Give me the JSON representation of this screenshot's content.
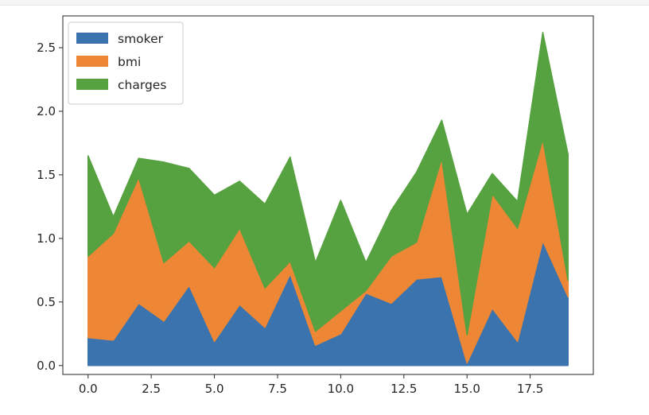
{
  "chart_data": {
    "type": "area",
    "stacked": true,
    "x": [
      0,
      1,
      2,
      3,
      4,
      5,
      6,
      7,
      8,
      9,
      10,
      11,
      12,
      13,
      14,
      15,
      16,
      17,
      18,
      19
    ],
    "xlim": [
      -1,
      20
    ],
    "ylim": [
      -0.07,
      2.75
    ],
    "xticks": [
      0.0,
      2.5,
      5.0,
      7.5,
      10.0,
      12.5,
      15.0,
      17.5
    ],
    "xtick_labels": [
      "0.0",
      "2.5",
      "5.0",
      "7.5",
      "10.0",
      "12.5",
      "15.0",
      "17.5"
    ],
    "yticks": [
      0.0,
      0.5,
      1.0,
      1.5,
      2.0,
      2.5
    ],
    "ytick_labels": [
      "0.0",
      "0.5",
      "1.0",
      "1.5",
      "2.0",
      "2.5"
    ],
    "grid": false,
    "legend_position": "top-left",
    "series": [
      {
        "name": "smoker",
        "color": "#3a73ad",
        "values": [
          0.22,
          0.2,
          0.49,
          0.35,
          0.63,
          0.19,
          0.48,
          0.3,
          0.72,
          0.16,
          0.25,
          0.57,
          0.49,
          0.68,
          0.7,
          0.02,
          0.45,
          0.19,
          0.98,
          0.54
        ]
      },
      {
        "name": "bmi",
        "color": "#ed8736",
        "values": [
          0.64,
          0.84,
          0.99,
          0.46,
          0.35,
          0.58,
          0.6,
          0.31,
          0.1,
          0.11,
          0.18,
          0.02,
          0.37,
          0.29,
          0.93,
          0.22,
          0.9,
          0.89,
          0.8,
          0.13
        ]
      },
      {
        "name": "charges",
        "color": "#56a140",
        "values": [
          0.79,
          0.13,
          0.15,
          0.79,
          0.57,
          0.57,
          0.37,
          0.66,
          0.82,
          0.54,
          0.87,
          0.22,
          0.36,
          0.55,
          0.3,
          0.95,
          0.16,
          0.21,
          0.84,
          0.99
        ]
      }
    ]
  }
}
